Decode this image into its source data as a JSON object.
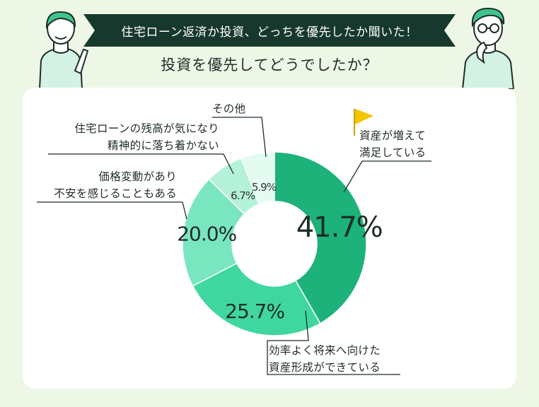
{
  "banner": {
    "title": "住宅ローン返済か投資、どっちを優先したか聞いた！"
  },
  "subtitle": "投資を優先してどうでしたか？",
  "labels": {
    "assets_up": [
      "資産が増えて",
      "満足している"
    ],
    "future_assets": [
      "効率よく将来へ向けた",
      "資産形成ができている"
    ],
    "anxiety": [
      "価格変動があり",
      "不安を感じることもある"
    ],
    "loan_worry": [
      "住宅ローンの残高が気になり",
      "精神的に落ち着かない"
    ],
    "other": [
      "その他"
    ]
  },
  "colors": {
    "banner": "#17382c",
    "slice1": "#1db27a",
    "slice2": "#3fd79f",
    "slice3": "#79e6c0",
    "slice4": "#b4f1d9",
    "slice5": "#e3fbf0",
    "flag": "#f2c500"
  },
  "chart_data": {
    "type": "pie",
    "donut": true,
    "categories": [
      "資産が増えて満足している",
      "効率よく将来へ向けた資産形成ができている",
      "価格変動があり不安を感じることもある",
      "住宅ローンの残高が気になり精神的に落ち着かない",
      "その他"
    ],
    "values": [
      41.7,
      25.7,
      20.0,
      6.7,
      5.9
    ],
    "value_labels": [
      "41.7%",
      "25.7%",
      "20.0%",
      "6.7%",
      "5.9%"
    ]
  }
}
